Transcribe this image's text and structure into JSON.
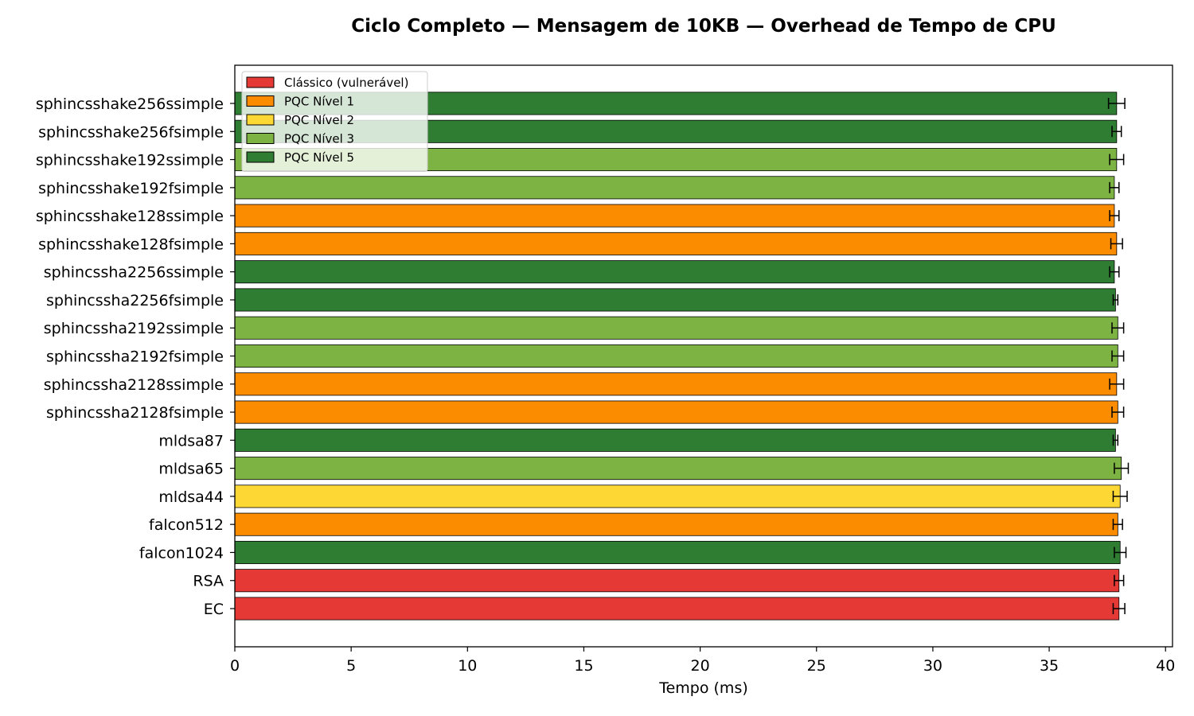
{
  "chart_data": {
    "type": "bar",
    "orientation": "horizontal",
    "title": "Ciclo Completo — Mensagem de 10KB — Overhead de Tempo de CPU",
    "xlabel": "Tempo (ms)",
    "ylabel": "",
    "xlim": [
      0,
      40.3
    ],
    "xticks": [
      0,
      5,
      10,
      15,
      20,
      25,
      30,
      35,
      40
    ],
    "grid": false,
    "legend_position": "top-left",
    "legend": [
      {
        "label": "Clássico (vulnerável)",
        "color": "#e53935"
      },
      {
        "label": "PQC Nível 1",
        "color": "#fb8c00"
      },
      {
        "label": "PQC Nível 2",
        "color": "#fdd835"
      },
      {
        "label": "PQC Nível 3",
        "color": "#7cb342"
      },
      {
        "label": "PQC Nível 5",
        "color": "#2e7d32"
      }
    ],
    "categories": [
      "sphincsshake256ssimple",
      "sphincsshake256fsimple",
      "sphincsshake192ssimple",
      "sphincsshake192fsimple",
      "sphincsshake128ssimple",
      "sphincsshake128fsimple",
      "sphincssha2256ssimple",
      "sphincssha2256fsimple",
      "sphincssha2192ssimple",
      "sphincssha2192fsimple",
      "sphincssha2128ssimple",
      "sphincssha2128fsimple",
      "mldsa87",
      "mldsa65",
      "mldsa44",
      "falcon512",
      "falcon1024",
      "RSA",
      "EC"
    ],
    "values": [
      37.9,
      37.9,
      37.9,
      37.8,
      37.8,
      37.9,
      37.8,
      37.85,
      37.95,
      37.95,
      37.9,
      37.95,
      37.85,
      38.1,
      38.05,
      37.95,
      38.05,
      38.0,
      38.0
    ],
    "errors": [
      0.35,
      0.2,
      0.3,
      0.2,
      0.2,
      0.25,
      0.2,
      0.1,
      0.25,
      0.25,
      0.3,
      0.25,
      0.1,
      0.3,
      0.3,
      0.2,
      0.25,
      0.2,
      0.25
    ],
    "levels": [
      5,
      5,
      3,
      3,
      1,
      1,
      5,
      5,
      3,
      3,
      1,
      1,
      5,
      3,
      2,
      1,
      5,
      0,
      0
    ]
  }
}
